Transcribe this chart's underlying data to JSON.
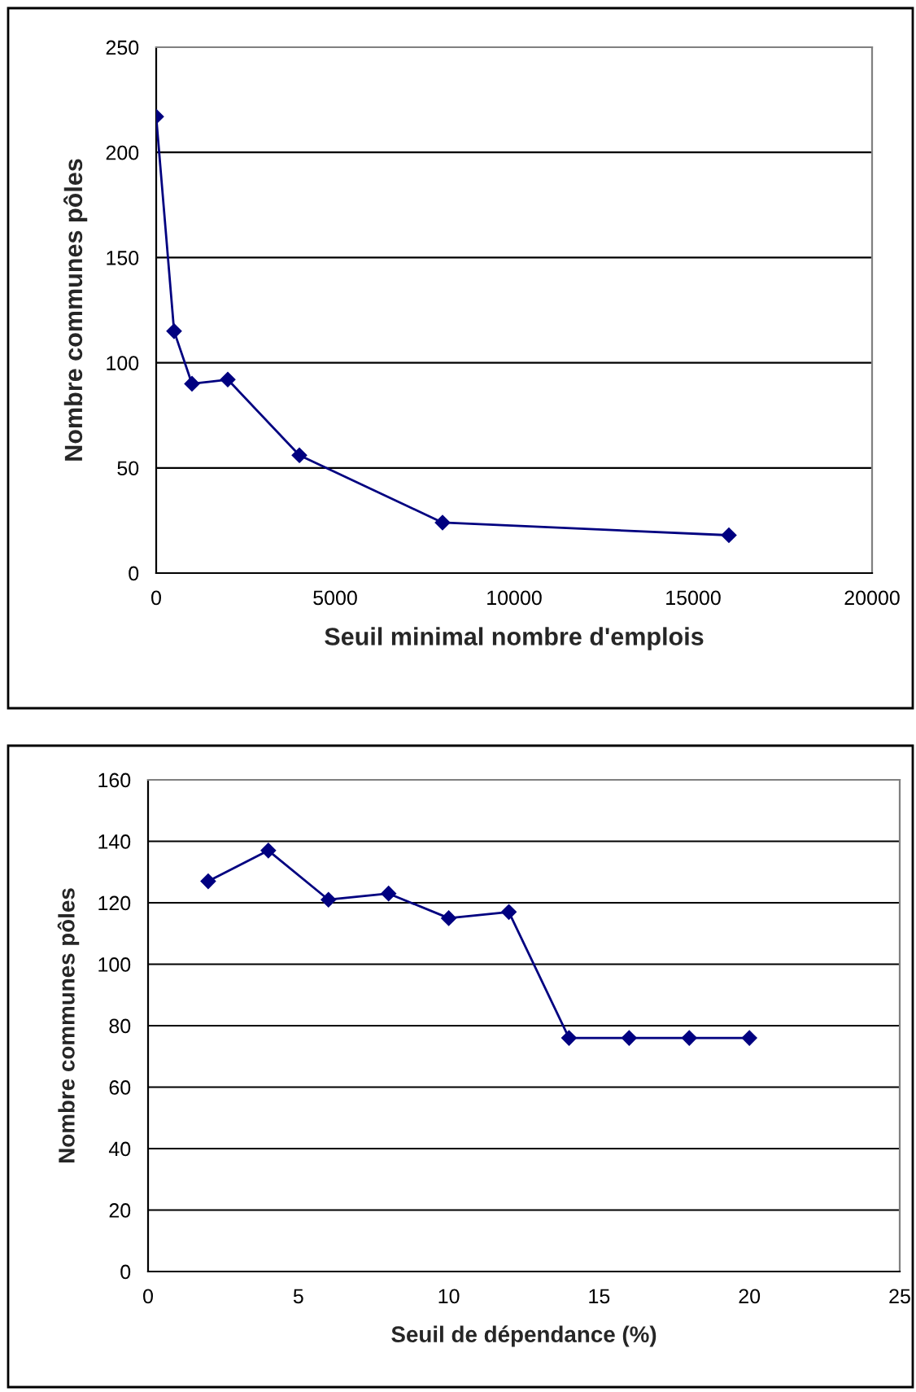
{
  "chart_data": [
    {
      "type": "line",
      "xlabel": "Seuil minimal nombre d'emplois",
      "ylabel": "Nombre communes pôles",
      "x": [
        0,
        500,
        1000,
        2000,
        4000,
        8000,
        16000
      ],
      "series": [
        {
          "color": "#000080",
          "values": [
            217,
            115,
            90,
            92,
            56,
            24,
            18
          ]
        }
      ],
      "xlim": [
        0,
        20000
      ],
      "xticks": [
        0,
        5000,
        10000,
        15000,
        20000
      ],
      "ylim": [
        0,
        250
      ],
      "yticks": [
        0,
        50,
        100,
        150,
        200,
        250
      ],
      "grid": "y",
      "marker": "diamond",
      "line_style": "solid"
    },
    {
      "type": "line",
      "xlabel": "Seuil de dépendance (%)",
      "ylabel": "Nombre communes pôles",
      "x": [
        2,
        4,
        6,
        8,
        10,
        12,
        14,
        16,
        18,
        20
      ],
      "series": [
        {
          "color": "#000080",
          "values": [
            127,
            137,
            121,
            123,
            115,
            117,
            76,
            76,
            76,
            76
          ]
        }
      ],
      "xlim": [
        0,
        25
      ],
      "xticks": [
        0,
        5,
        10,
        15,
        20,
        25
      ],
      "ylim": [
        0,
        160
      ],
      "yticks": [
        0,
        20,
        40,
        60,
        80,
        100,
        120,
        140,
        160
      ],
      "grid": "y",
      "marker": "diamond",
      "line_style": "solid"
    }
  ]
}
